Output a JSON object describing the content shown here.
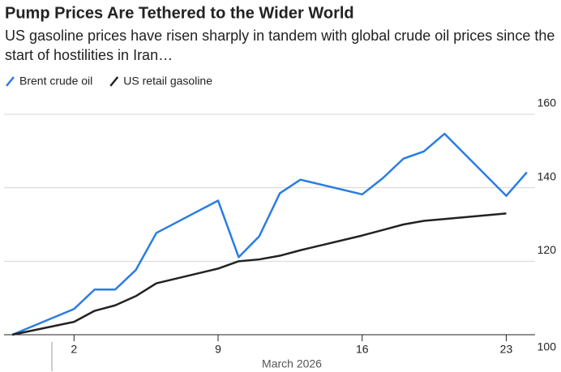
{
  "chart_data": {
    "type": "line",
    "title": "Pump Prices Are Tethered to the Wider World",
    "subtitle": "US gasoline prices have risen sharply in tandem with global crude oil prices since the start of hostilities in Iran…",
    "x_label": "March 2026",
    "x": [
      -1,
      2,
      3,
      4,
      5,
      6,
      9,
      10,
      11,
      12,
      13,
      16,
      17,
      18,
      19,
      20,
      23,
      24
    ],
    "xlim": [
      -1.4,
      24.4
    ],
    "xticks": [
      2,
      9,
      16,
      23
    ],
    "ylim": [
      100,
      160
    ],
    "yticks": [
      100,
      120,
      140,
      160
    ],
    "grid": true,
    "series": [
      {
        "name": "Brent crude oil",
        "color": "#2a7de1",
        "values": [
          100,
          107,
          112.3,
          112.3,
          117.6,
          127.7,
          136.5,
          121.1,
          126.8,
          138.5,
          142.2,
          138.2,
          142.6,
          147.9,
          149.9,
          154.7,
          137.8,
          144.2
        ]
      },
      {
        "name": "US retail gasoline",
        "color": "#222222",
        "values": [
          100,
          103.5,
          106.5,
          108,
          110.5,
          114,
          118,
          120,
          120.5,
          121.5,
          123,
          127,
          128.5,
          130,
          131,
          131.5,
          133,
          null
        ]
      }
    ]
  }
}
